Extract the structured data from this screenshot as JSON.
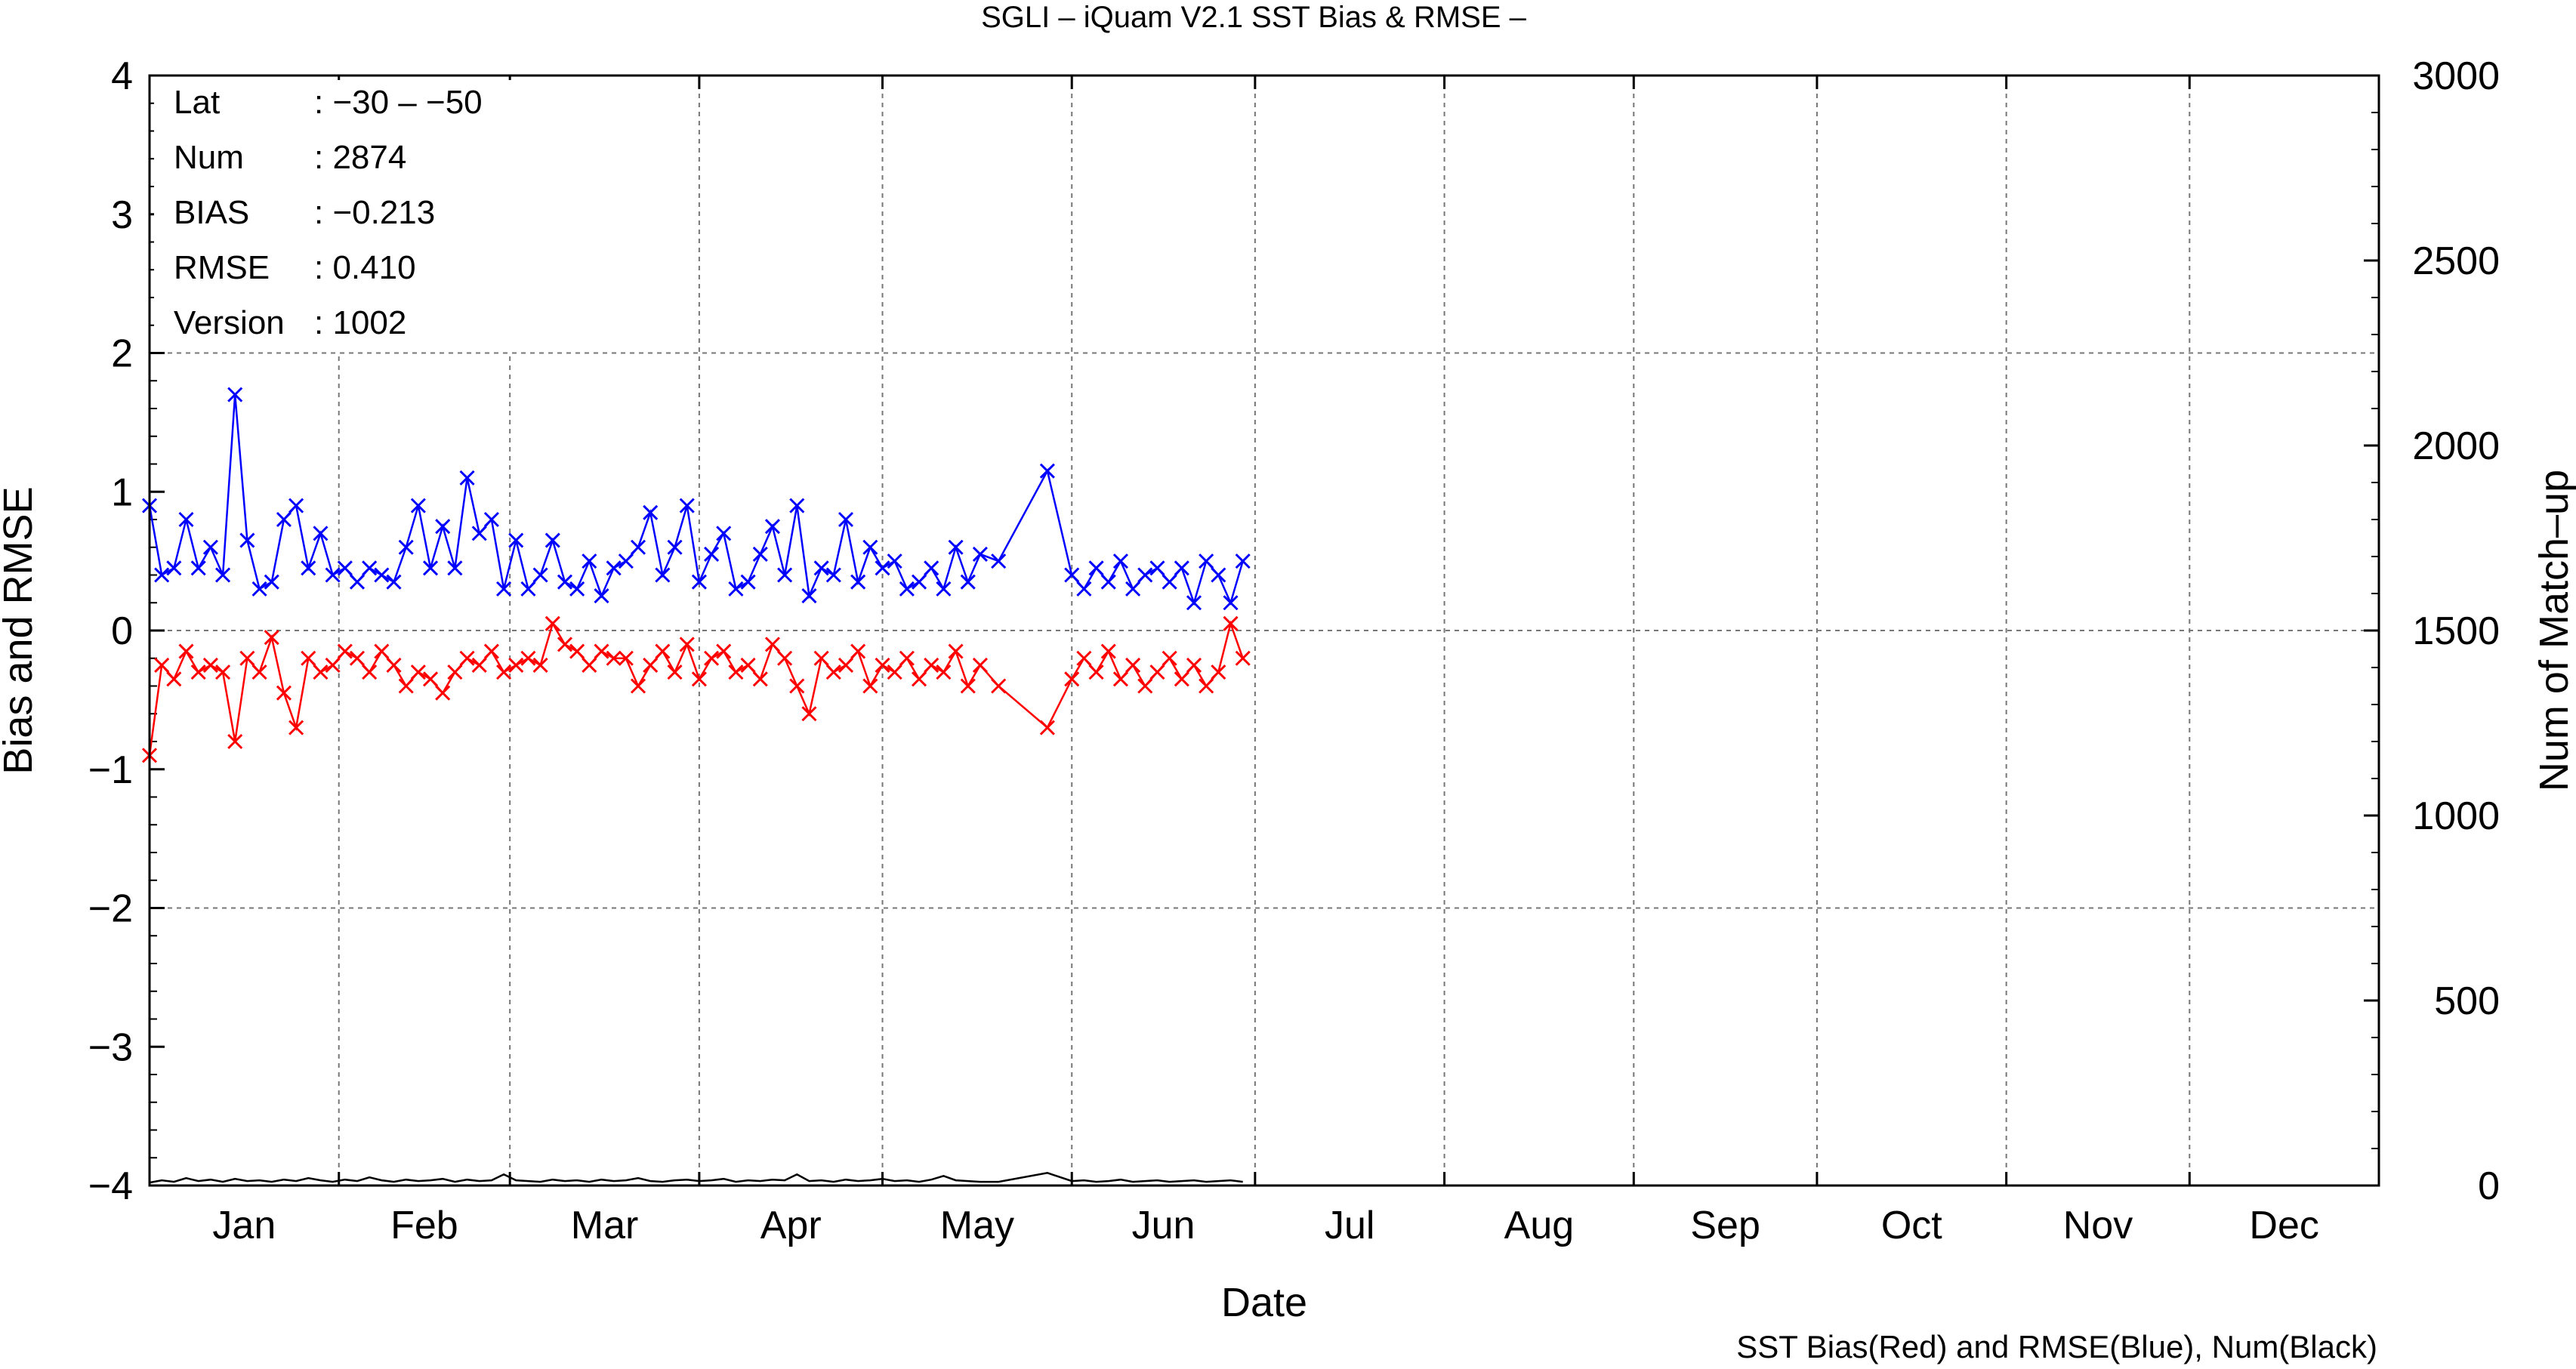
{
  "chart_data": {
    "type": "line",
    "title": "SGLI – iQuam V2.1 SST Bias & RMSE  –",
    "xlabel": "Date",
    "ylabel": "Bias and RMSE",
    "y2label": "Num of Match–up",
    "footnote": "SST Bias(Red) and RMSE(Blue), Num(Black)",
    "months": [
      "Jan",
      "Feb",
      "Mar",
      "Apr",
      "May",
      "Jun",
      "Jul",
      "Aug",
      "Sep",
      "Oct",
      "Nov",
      "Dec"
    ],
    "xlim": [
      1,
      366
    ],
    "ylim": [
      -4,
      4
    ],
    "y2lim": [
      0,
      3000
    ],
    "yticks": [
      "−4",
      "−3",
      "−2",
      "−1",
      "0",
      "1",
      "2",
      "3",
      "4"
    ],
    "y2ticks": [
      "0",
      "500",
      "1000",
      "1500",
      "2000",
      "2500",
      "3000"
    ],
    "grid": true,
    "info": [
      {
        "label": "Lat",
        "value": ": −30 – −50"
      },
      {
        "label": "Num",
        "value": ": 2874"
      },
      {
        "label": "BIAS",
        "value": ": −0.213"
      },
      {
        "label": "RMSE",
        "value": ": 0.410"
      },
      {
        "label": "Version",
        "value": ": 1002"
      }
    ],
    "series": [
      {
        "color": "#0000ff",
        "axis": "left",
        "marker": "x",
        "x": [
          1,
          3,
          5,
          7,
          9,
          11,
          13,
          15,
          17,
          19,
          21,
          23,
          25,
          27,
          29,
          31,
          33,
          35,
          37,
          39,
          41,
          43,
          45,
          47,
          49,
          51,
          53,
          55,
          57,
          59,
          61,
          63,
          65,
          67,
          69,
          71,
          73,
          75,
          77,
          79,
          81,
          83,
          85,
          87,
          89,
          91,
          93,
          95,
          97,
          99,
          101,
          103,
          105,
          107,
          109,
          111,
          113,
          115,
          117,
          119,
          121,
          123,
          125,
          127,
          129,
          131,
          133,
          135,
          137,
          140,
          148,
          152,
          154,
          156,
          158,
          160,
          162,
          164,
          166,
          168,
          170,
          172,
          174,
          176,
          178,
          180
        ],
        "y": [
          0.9,
          0.4,
          0.45,
          0.8,
          0.45,
          0.6,
          0.4,
          1.7,
          0.65,
          0.3,
          0.35,
          0.8,
          0.9,
          0.45,
          0.7,
          0.4,
          0.45,
          0.35,
          0.45,
          0.4,
          0.35,
          0.6,
          0.9,
          0.45,
          0.75,
          0.45,
          1.1,
          0.7,
          0.8,
          0.3,
          0.65,
          0.3,
          0.4,
          0.65,
          0.35,
          0.3,
          0.5,
          0.25,
          0.45,
          0.5,
          0.6,
          0.85,
          0.4,
          0.6,
          0.9,
          0.35,
          0.55,
          0.7,
          0.3,
          0.35,
          0.55,
          0.75,
          0.4,
          0.9,
          0.25,
          0.45,
          0.4,
          0.8,
          0.35,
          0.6,
          0.45,
          0.5,
          0.3,
          0.35,
          0.45,
          0.3,
          0.6,
          0.35,
          0.55,
          0.5,
          1.15,
          0.4,
          0.3,
          0.45,
          0.35,
          0.5,
          0.3,
          0.4,
          0.45,
          0.35,
          0.45,
          0.2,
          0.5,
          0.4,
          0.2,
          0.5
        ]
      },
      {
        "color": "#ff0000",
        "axis": "left",
        "marker": "x",
        "x": [
          1,
          3,
          5,
          7,
          9,
          11,
          13,
          15,
          17,
          19,
          21,
          23,
          25,
          27,
          29,
          31,
          33,
          35,
          37,
          39,
          41,
          43,
          45,
          47,
          49,
          51,
          53,
          55,
          57,
          59,
          61,
          63,
          65,
          67,
          69,
          71,
          73,
          75,
          77,
          79,
          81,
          83,
          85,
          87,
          89,
          91,
          93,
          95,
          97,
          99,
          101,
          103,
          105,
          107,
          109,
          111,
          113,
          115,
          117,
          119,
          121,
          123,
          125,
          127,
          129,
          131,
          133,
          135,
          137,
          140,
          148,
          152,
          154,
          156,
          158,
          160,
          162,
          164,
          166,
          168,
          170,
          172,
          174,
          176,
          178,
          180
        ],
        "y": [
          -0.9,
          -0.25,
          -0.35,
          -0.15,
          -0.3,
          -0.25,
          -0.3,
          -0.8,
          -0.2,
          -0.3,
          -0.05,
          -0.45,
          -0.7,
          -0.2,
          -0.3,
          -0.25,
          -0.15,
          -0.2,
          -0.3,
          -0.15,
          -0.25,
          -0.4,
          -0.3,
          -0.35,
          -0.45,
          -0.3,
          -0.2,
          -0.25,
          -0.15,
          -0.3,
          -0.25,
          -0.2,
          -0.25,
          0.05,
          -0.1,
          -0.15,
          -0.25,
          -0.15,
          -0.2,
          -0.2,
          -0.4,
          -0.25,
          -0.15,
          -0.3,
          -0.1,
          -0.35,
          -0.2,
          -0.15,
          -0.3,
          -0.25,
          -0.35,
          -0.1,
          -0.2,
          -0.4,
          -0.6,
          -0.2,
          -0.3,
          -0.25,
          -0.15,
          -0.4,
          -0.25,
          -0.3,
          -0.2,
          -0.35,
          -0.25,
          -0.3,
          -0.15,
          -0.4,
          -0.25,
          -0.4,
          -0.7,
          -0.35,
          -0.2,
          -0.3,
          -0.15,
          -0.35,
          -0.25,
          -0.4,
          -0.3,
          -0.2,
          -0.35,
          -0.25,
          -0.4,
          -0.3,
          0.05,
          -0.2
        ]
      },
      {
        "color": "#000000",
        "axis": "right",
        "marker": "none",
        "x": [
          1,
          3,
          5,
          7,
          9,
          11,
          13,
          15,
          17,
          19,
          21,
          23,
          25,
          27,
          29,
          31,
          33,
          35,
          37,
          39,
          41,
          43,
          45,
          47,
          49,
          51,
          53,
          55,
          57,
          59,
          61,
          63,
          65,
          67,
          69,
          71,
          73,
          75,
          77,
          79,
          81,
          83,
          85,
          87,
          89,
          91,
          93,
          95,
          97,
          99,
          101,
          103,
          105,
          107,
          109,
          111,
          113,
          115,
          117,
          119,
          121,
          123,
          125,
          127,
          129,
          131,
          133,
          135,
          137,
          140,
          148,
          152,
          154,
          156,
          158,
          160,
          162,
          164,
          166,
          168,
          170,
          172,
          174,
          176,
          178,
          180
        ],
        "y": [
          8,
          14,
          10,
          20,
          12,
          16,
          10,
          18,
          12,
          14,
          10,
          16,
          12,
          20,
          14,
          10,
          16,
          12,
          22,
          14,
          10,
          16,
          12,
          14,
          18,
          10,
          16,
          12,
          14,
          30,
          14,
          12,
          10,
          16,
          12,
          14,
          10,
          16,
          12,
          14,
          20,
          12,
          10,
          14,
          16,
          12,
          14,
          18,
          10,
          14,
          12,
          16,
          14,
          30,
          12,
          14,
          10,
          16,
          12,
          14,
          18,
          12,
          14,
          10,
          16,
          26,
          14,
          12,
          10,
          10,
          34,
          12,
          14,
          10,
          12,
          16,
          10,
          12,
          14,
          10,
          12,
          14,
          10,
          12,
          14,
          10
        ]
      }
    ]
  }
}
